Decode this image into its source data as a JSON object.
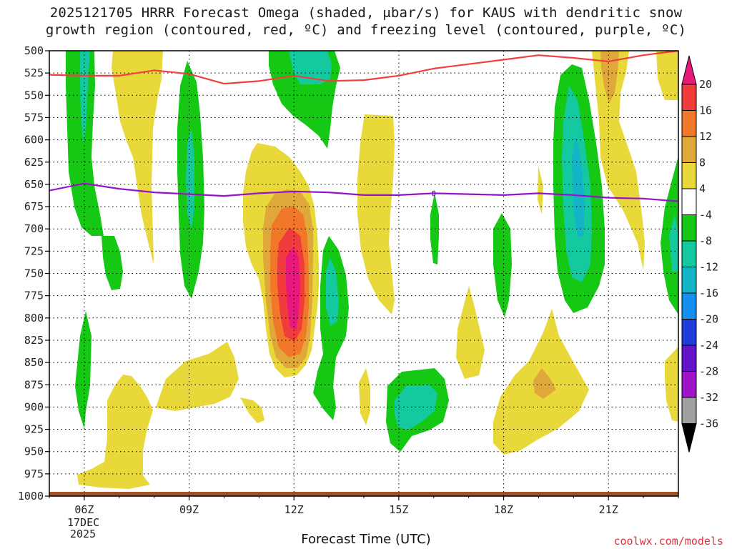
{
  "chart_data": {
    "type": "heatmap",
    "title": "2025121705 HRRR Forecast Omega (shaded, μbar/s) for KAUS with dendritic snow\ngrowth region (contoured, red, ºC) and freezing level (contoured, purple, ºC)",
    "xlabel": "Forecast Time (UTC)",
    "ylabel": "",
    "x_ticks": [
      "06Z",
      "09Z",
      "12Z",
      "15Z",
      "18Z",
      "21Z"
    ],
    "x_tick_hours": [
      6,
      9,
      12,
      15,
      18,
      21
    ],
    "x_range_hours": [
      5,
      23
    ],
    "date_labels": [
      "17DEC",
      "2025"
    ],
    "y_ticks": [
      "500",
      "525",
      "550",
      "575",
      "600",
      "625",
      "650",
      "675",
      "700",
      "725",
      "750",
      "775",
      "800",
      "825",
      "850",
      "875",
      "900",
      "925",
      "950",
      "975",
      "1000"
    ],
    "y_range_hPa": [
      500,
      1000
    ],
    "colorbar": {
      "labels": [
        "20",
        "16",
        "12",
        "8",
        "4",
        "-4",
        "-8",
        "-12",
        "-16",
        "-20",
        "-24",
        "-28",
        "-32",
        "-36"
      ],
      "colors": [
        "#e8197d",
        "#f03c3c",
        "#f07828",
        "#e0a83a",
        "#e8d83a",
        "#ffffff",
        "#14c814",
        "#14c8a0",
        "#14b4c8",
        "#1490f0",
        "#1e3cdc",
        "#6414c8",
        "#a014c8",
        "#a0a0a0",
        "#000000"
      ]
    },
    "series": [
      {
        "name": "dendritic snow growth region",
        "color": "#f04040",
        "x": [
          5,
          6,
          7,
          8,
          9,
          10,
          11,
          12,
          13,
          14,
          15,
          16,
          17,
          18,
          19,
          20,
          21,
          22,
          23
        ],
        "y": [
          527,
          528,
          528,
          522,
          526,
          537,
          534,
          528,
          534,
          533,
          528,
          520,
          515,
          510,
          505,
          508,
          512,
          505,
          500
        ]
      },
      {
        "name": "freezing level",
        "color": "#9614c8",
        "x": [
          5,
          6,
          7,
          8,
          9,
          10,
          11,
          12,
          13,
          14,
          15,
          16,
          17,
          18,
          19,
          20,
          21,
          22,
          23
        ],
        "y": [
          657,
          649,
          655,
          659,
          661,
          663,
          660,
          658,
          659,
          662,
          662,
          660,
          661,
          662,
          660,
          662,
          665,
          666,
          669
        ]
      }
    ],
    "shaded_regions": [
      {
        "band": "4",
        "value_range": [
          4,
          8
        ]
      },
      {
        "band": "-4",
        "value_range": [
          -8,
          -4
        ]
      },
      {
        "band": "-8",
        "value_range": [
          -12,
          -8
        ]
      },
      {
        "band": "8",
        "value_range": [
          8,
          12
        ]
      },
      {
        "band": "12",
        "value_range": [
          12,
          16
        ]
      },
      {
        "band": "16",
        "value_range": [
          16,
          20
        ]
      },
      {
        "band": "20",
        "value_range": [
          20,
          24
        ]
      }
    ],
    "annotations": [
      {
        "text": "0",
        "x": 16.0,
        "y": 660
      }
    ]
  },
  "credit": "coolwx.com/models"
}
